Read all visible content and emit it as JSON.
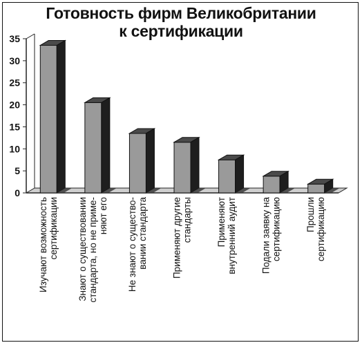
{
  "chart_data": {
    "type": "bar",
    "title_lines": [
      "Готовность фирм Великобритании",
      "к сертификации"
    ],
    "categories": [
      [
        "Изучают возможность",
        "сертификации"
      ],
      [
        "Знают о существовании",
        "стандарта, но не приме-",
        "няют его"
      ],
      [
        "Не знают о существо-",
        "вании стандарта"
      ],
      [
        "Применяют другие",
        "стандарты"
      ],
      [
        "Применяют",
        "внутренний аудит"
      ],
      [
        "Подали заявку на",
        "сертификацию"
      ],
      [
        "Прошли",
        "сертификацию"
      ]
    ],
    "values": [
      33.5,
      20.5,
      13.5,
      11.5,
      7.5,
      3.8,
      2.0
    ],
    "ylim": [
      0,
      35
    ],
    "yticks": [
      0,
      5,
      10,
      15,
      20,
      25,
      30,
      35
    ],
    "grid": false,
    "bar_style": "3d",
    "colors": {
      "bar_front": "#9a9a9a",
      "bar_top": "#4a4a4a",
      "bar_side": "#1e1e1e",
      "wall": "#ffffff",
      "floor": "#cfcfcf",
      "axis": "#222222"
    }
  }
}
